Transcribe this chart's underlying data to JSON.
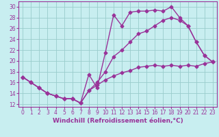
{
  "xlabel": "Windchill (Refroidissement éolien,°C)",
  "bg_color": "#c8eef0",
  "line_color": "#993399",
  "grid_color": "#99cccc",
  "xlim": [
    -0.5,
    23.5
  ],
  "ylim": [
    11.5,
    31
  ],
  "xticks": [
    0,
    1,
    2,
    3,
    4,
    5,
    6,
    7,
    8,
    9,
    10,
    11,
    12,
    13,
    14,
    15,
    16,
    17,
    18,
    19,
    20,
    21,
    22,
    23
  ],
  "yticks": [
    12,
    14,
    16,
    18,
    20,
    22,
    24,
    26,
    28,
    30
  ],
  "line1_x": [
    0,
    1,
    2,
    3,
    4,
    5,
    6,
    7,
    8,
    9,
    10,
    11,
    12,
    13,
    14,
    15,
    16,
    17,
    18,
    19,
    20,
    21,
    22,
    23
  ],
  "line1_y": [
    17.0,
    16.0,
    15.0,
    14.0,
    13.5,
    13.0,
    13.0,
    12.2,
    17.5,
    15.0,
    21.5,
    28.5,
    26.5,
    29.0,
    29.2,
    29.2,
    29.4,
    29.2,
    30.0,
    28.0,
    26.5,
    23.5,
    21.0,
    19.8
  ],
  "line2_x": [
    0,
    1,
    2,
    3,
    4,
    5,
    6,
    7,
    8,
    9,
    10,
    11,
    12,
    13,
    14,
    15,
    16,
    17,
    18,
    19,
    20,
    21,
    22,
    23
  ],
  "line2_y": [
    17.0,
    16.0,
    15.0,
    14.0,
    13.5,
    13.0,
    13.0,
    12.2,
    14.5,
    16.0,
    18.0,
    20.8,
    22.0,
    23.5,
    25.0,
    25.5,
    26.5,
    27.5,
    28.0,
    27.5,
    26.5,
    23.5,
    21.0,
    19.8
  ],
  "line3_x": [
    0,
    1,
    2,
    3,
    4,
    5,
    6,
    7,
    8,
    9,
    10,
    11,
    12,
    13,
    14,
    15,
    16,
    17,
    18,
    19,
    20,
    21,
    22,
    23
  ],
  "line3_y": [
    17.0,
    16.0,
    15.0,
    14.0,
    13.5,
    13.0,
    13.0,
    12.2,
    14.5,
    15.5,
    16.5,
    17.2,
    17.8,
    18.2,
    18.8,
    19.0,
    19.2,
    19.0,
    19.2,
    19.0,
    19.2,
    19.0,
    19.5,
    19.8
  ],
  "marker": "D",
  "markersize": 2.5,
  "linewidth": 1.0,
  "xlabel_fontsize": 6.5,
  "tick_fontsize": 5.5
}
